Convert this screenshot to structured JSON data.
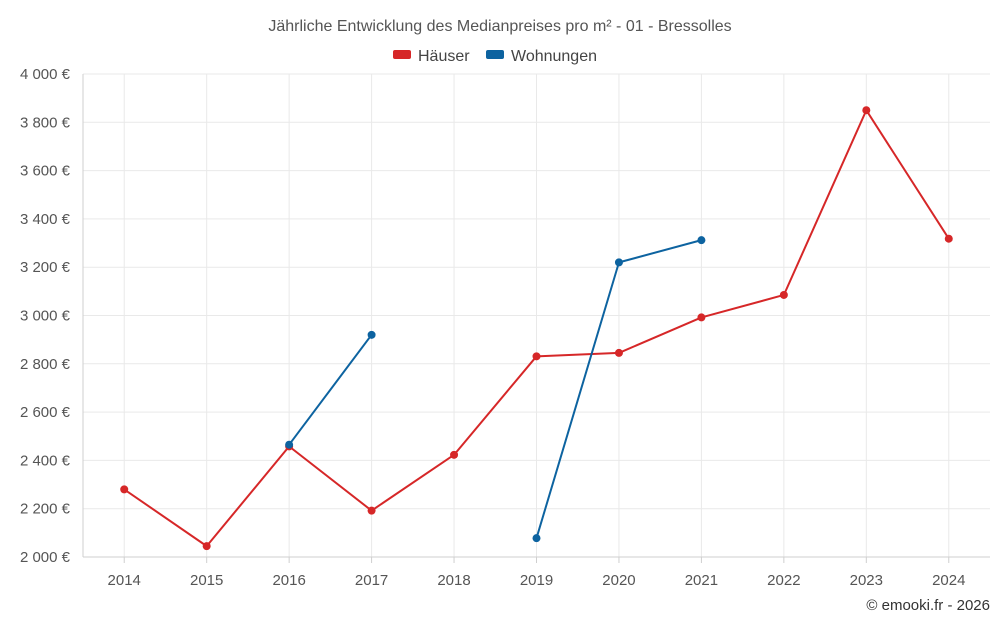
{
  "chart_data": {
    "type": "line",
    "title": "Jährliche Entwicklung des Medianpreises pro m² - 01 - Bressolles",
    "xlabel": "",
    "ylabel": "",
    "categories": [
      2014,
      2015,
      2016,
      2017,
      2018,
      2019,
      2020,
      2021,
      2022,
      2023,
      2024
    ],
    "ylim": [
      2000,
      4000
    ],
    "yticks": [
      2000,
      2200,
      2400,
      2600,
      2800,
      3000,
      3200,
      3400,
      3600,
      3800,
      4000
    ],
    "ytick_labels": [
      "2 000 €",
      "2 200 €",
      "2 400 €",
      "2 600 €",
      "2 800 €",
      "3 000 €",
      "3 200 €",
      "3 400 €",
      "3 600 €",
      "3 800 €",
      "4 000 €"
    ],
    "grid": true,
    "legend_position": "top-center",
    "series": [
      {
        "name": "Häuser",
        "color": "#d62728",
        "values": [
          2280,
          2045,
          2458,
          2192,
          2423,
          2831,
          2845,
          2992,
          3085,
          3850,
          3318
        ]
      },
      {
        "name": "Wohnungen",
        "color": "#0d63a0",
        "values": [
          null,
          null,
          2465,
          2920,
          null,
          2078,
          3220,
          3312,
          null,
          null,
          null
        ]
      }
    ]
  },
  "credit": "© emooki.fr - 2026"
}
